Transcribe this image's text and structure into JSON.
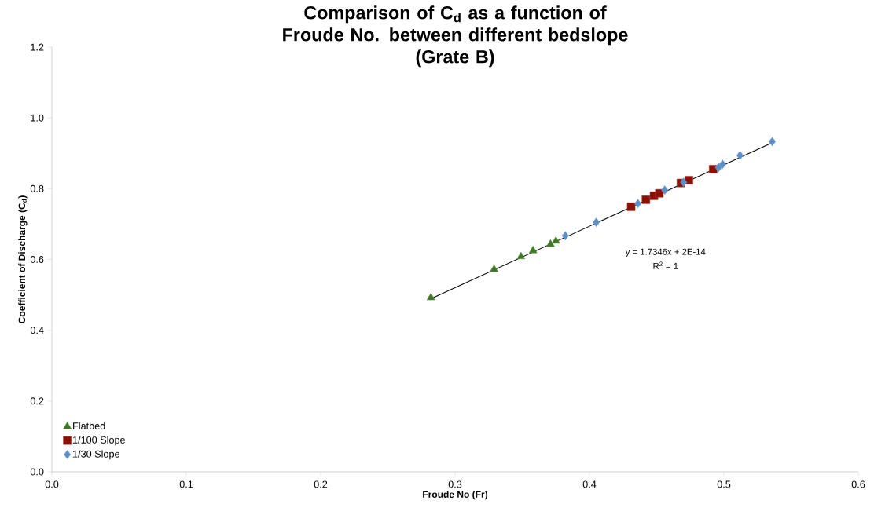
{
  "chart_data": {
    "type": "scatter",
    "title": "Comparison of C$_{d}$ as a function of Froude No. between different bedslope",
    "subtitle": "(Grate B)",
    "xlabel": "Froude No (Fr)",
    "ylabel": "Coefficient of Discharge (C$_{d}$)",
    "series": [
      {
        "name": "Flatbed",
        "color": "#3b7a1f",
        "marker": "triangle",
        "x": [
          0.282,
          0.329,
          0.349,
          0.358,
          0.371,
          0.375
        ],
        "values": [
          0.492,
          0.572,
          0.608,
          0.625,
          0.643,
          0.652
        ]
      },
      {
        "name": "1/100 Slope",
        "color": "#8c1004",
        "marker": "square",
        "x": [
          0.431,
          0.442,
          0.448,
          0.452,
          0.468,
          0.474,
          0.492
        ],
        "values": [
          0.749,
          0.769,
          0.78,
          0.787,
          0.816,
          0.824,
          0.855
        ]
      },
      {
        "name": "1/30 Slope",
        "color": "#5b8fca",
        "marker": "diamond",
        "x": [
          0.382,
          0.405,
          0.436,
          0.456,
          0.47,
          0.496,
          0.499,
          0.512,
          0.536
        ],
        "values": [
          0.667,
          0.705,
          0.758,
          0.796,
          0.818,
          0.86,
          0.869,
          0.894,
          0.933
        ]
      },
      {
        "type": "line",
        "color": "#000000",
        "marker": "none",
        "x": [
          0.282,
          0.536
        ],
        "values": [
          0.489,
          0.93
        ]
      }
    ],
    "annotations": [
      "y = 1.7346x + 2E-14",
      "R$^{2}$ = 1"
    ],
    "xlim": [
      0,
      0.6
    ],
    "ylim": [
      0,
      1.2
    ],
    "xticks": [
      {
        "value": 0,
        "label": "0.0"
      },
      0.1,
      0.2,
      0.3,
      0.4,
      0.5,
      0.6
    ],
    "yticks": [
      {
        "value": 0,
        "label": "0.0"
      },
      0.2,
      0.4,
      0.6,
      0.8,
      {
        "value": 1,
        "label": "1.0"
      },
      1.2
    ],
    "grid": false,
    "legend": "bottom left"
  }
}
